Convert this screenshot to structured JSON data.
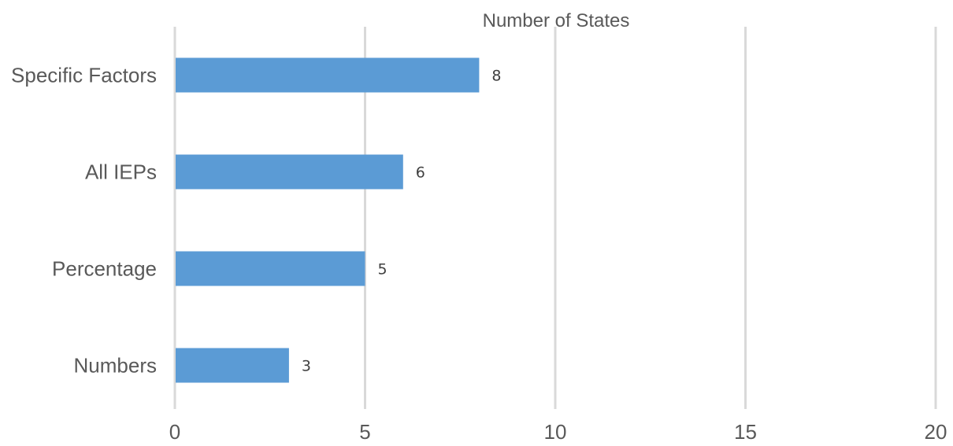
{
  "chart_data": {
    "type": "bar",
    "orientation": "horizontal",
    "title": "Number of States",
    "xlabel": "",
    "ylabel": "",
    "categories": [
      "Specific Factors",
      "All IEPs",
      "Percentage",
      "Numbers"
    ],
    "values": [
      8,
      6,
      5,
      3
    ],
    "data_labels": [
      "8",
      "6",
      "5",
      "3"
    ],
    "xlim": [
      0,
      20
    ],
    "x_ticks": [
      0,
      5,
      10,
      15,
      20
    ],
    "x_tick_labels": [
      "0",
      "5",
      "10",
      "15",
      "20"
    ],
    "grid": true,
    "legend": "none",
    "colors": {
      "bar": "#5b9bd5",
      "gridline": "#d9d9d9",
      "text": "#595959"
    }
  }
}
